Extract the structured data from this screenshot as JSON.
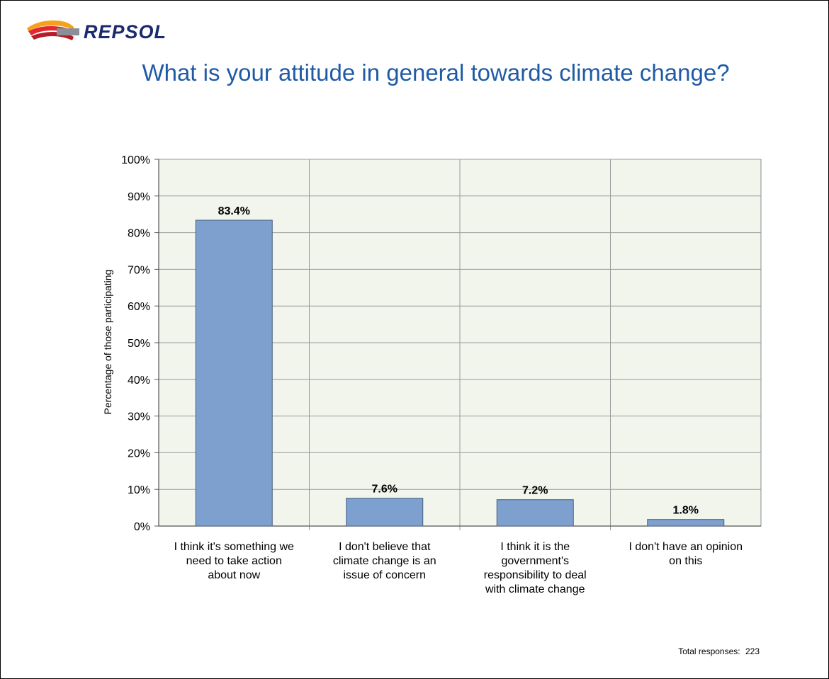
{
  "logo": {
    "name": "repsol-logo",
    "text": "REPSOL",
    "colors": [
      "#f6a11b",
      "#e3282f",
      "#1a2a6c"
    ]
  },
  "chart_data": {
    "type": "bar",
    "title": "What is your attitude in general towards climate change?",
    "xlabel": "",
    "ylabel": "Percentage of those participating",
    "categories": [
      "I think it's something we need to take action about now",
      "I don't believe that climate change is an issue of concern",
      "I think it is the government's responsibility to deal with climate change",
      "I don't have an opinion on this"
    ],
    "category_lines": [
      "I think it's something we\nneed to take action\nabout now",
      "I don't believe that\nclimate change is an\nissue of concern",
      "I think it is the\ngovernment's\nresponsibility to deal\nwith climate change",
      "I don't have an opinion\non this"
    ],
    "values": [
      83.4,
      7.6,
      7.2,
      1.8
    ],
    "data_labels": [
      "83.4%",
      "7.6%",
      "7.2%",
      "1.8%"
    ],
    "ylim": [
      0,
      100
    ],
    "yticks": [
      "0%",
      "10%",
      "20%",
      "30%",
      "40%",
      "50%",
      "60%",
      "70%",
      "80%",
      "90%",
      "100%"
    ],
    "grid": true,
    "bar_color": "#7da0cf",
    "bar_edge": "#4a5f80",
    "plot_bg": "#f1f5ec"
  },
  "footer": {
    "label": "Total responses:",
    "value": "223"
  }
}
